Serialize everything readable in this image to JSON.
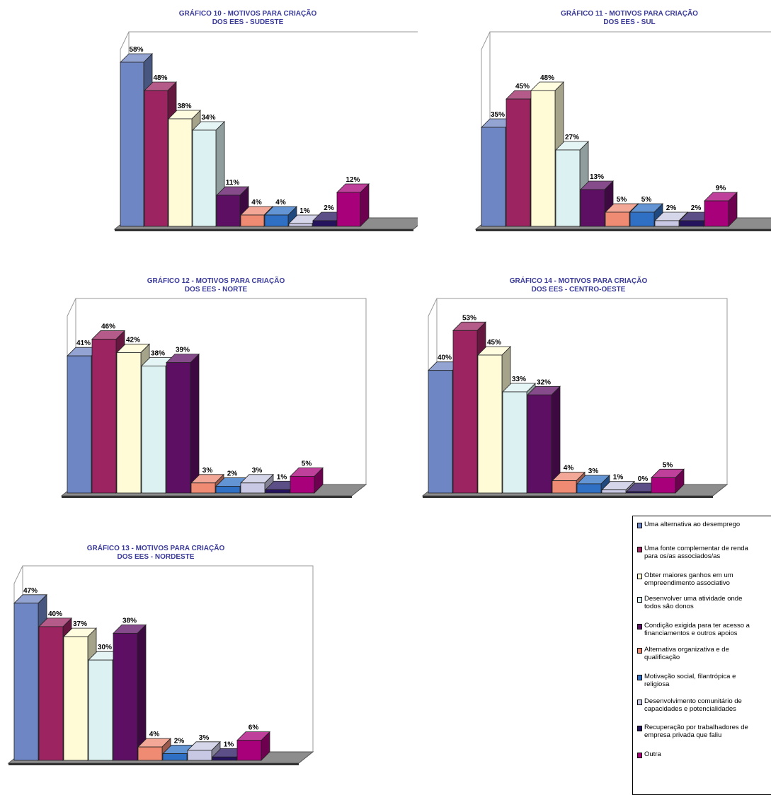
{
  "legend": {
    "items": [
      {
        "label": "Uma alternativa ao desemprego",
        "color": "#6f86c4"
      },
      {
        "label": "Uma fonte complementar de renda\npara os/as associados/as",
        "color": "#9b2461"
      },
      {
        "label": "Obter maiores ganhos em um\nempreendimento associativo",
        "color": "#fffbd6"
      },
      {
        "label": "Desenvolver uma atividade onde\ntodos são donos",
        "color": "#dcf1f1"
      },
      {
        "label": "Condição exigida para ter acesso a\nfinanciamentos e outros apoios",
        "color": "#5c0f63"
      },
      {
        "label": "Alternativa organizativa e de\nqualificação",
        "color": "#ef8a73"
      },
      {
        "label": "Motivação social, filantrópica e\nreligiosa",
        "color": "#2f70c4"
      },
      {
        "label": "Desenvolvimento comunitário de\ncapacidades e potencialidades",
        "color": "#c8c8e4"
      },
      {
        "label": "Recuperação por trabalhadores de\nempresa privada que faliu",
        "color": "#25135e"
      },
      {
        "label": "Outra",
        "color": "#a8007a"
      }
    ]
  },
  "chart_data": [
    {
      "type": "bar",
      "title_lines": [
        "GRÁFICO 10 - MOTIVOS PARA CRIAÇÃO",
        "DOS EES - SUDESTE"
      ],
      "values": [
        58,
        48,
        38,
        34,
        11,
        4,
        4,
        1,
        2,
        12
      ],
      "labels": [
        "58%",
        "48%",
        "38%",
        "34%",
        "11%",
        "4%",
        "4%",
        "1%",
        "2%",
        "12%"
      ],
      "ylim": [
        0,
        65
      ]
    },
    {
      "type": "bar",
      "title_lines": [
        "GRÁFICO 11 - MOTIVOS PARA CRIAÇÃO",
        "DOS EES - SUL"
      ],
      "values": [
        35,
        45,
        48,
        27,
        13,
        5,
        5,
        2,
        2,
        9
      ],
      "labels": [
        "35%",
        "45%",
        "48%",
        "27%",
        "13%",
        "5%",
        "5%",
        "2%",
        "2%",
        "9%"
      ],
      "ylim": [
        0,
        65
      ]
    },
    {
      "type": "bar",
      "title_lines": [
        "GRÁFICO 12 - MOTIVOS PARA CRIAÇÃO",
        "DOS EES - NORTE"
      ],
      "values": [
        41,
        46,
        42,
        38,
        39,
        3,
        2,
        3,
        1,
        5
      ],
      "labels": [
        "41%",
        "46%",
        "42%",
        "38%",
        "39%",
        "3%",
        "2%",
        "3%",
        "1%",
        "5%"
      ],
      "ylim": [
        0,
        55
      ]
    },
    {
      "type": "bar",
      "title_lines": [
        "GRÁFICO 14 - MOTIVOS PARA CRIAÇÃO",
        "DOS EES - CENTRO-OESTE"
      ],
      "values": [
        40,
        53,
        45,
        33,
        32,
        4,
        3,
        1,
        0,
        5
      ],
      "labels": [
        "40%",
        "53%",
        "45%",
        "33%",
        "32%",
        "4%",
        "3%",
        "1%",
        "0%",
        "5%"
      ],
      "ylim": [
        0,
        60
      ]
    },
    {
      "type": "bar",
      "title_lines": [
        "GRÁFICO 13 - MOTIVOS PARA CRIAÇÃO",
        "DOS EES - NORDESTE"
      ],
      "values": [
        47,
        40,
        37,
        30,
        38,
        4,
        2,
        3,
        1,
        6
      ],
      "labels": [
        "47%",
        "40%",
        "37%",
        "30%",
        "38%",
        "4%",
        "2%",
        "3%",
        "1%",
        "6%"
      ],
      "ylim": [
        0,
        55
      ]
    }
  ]
}
